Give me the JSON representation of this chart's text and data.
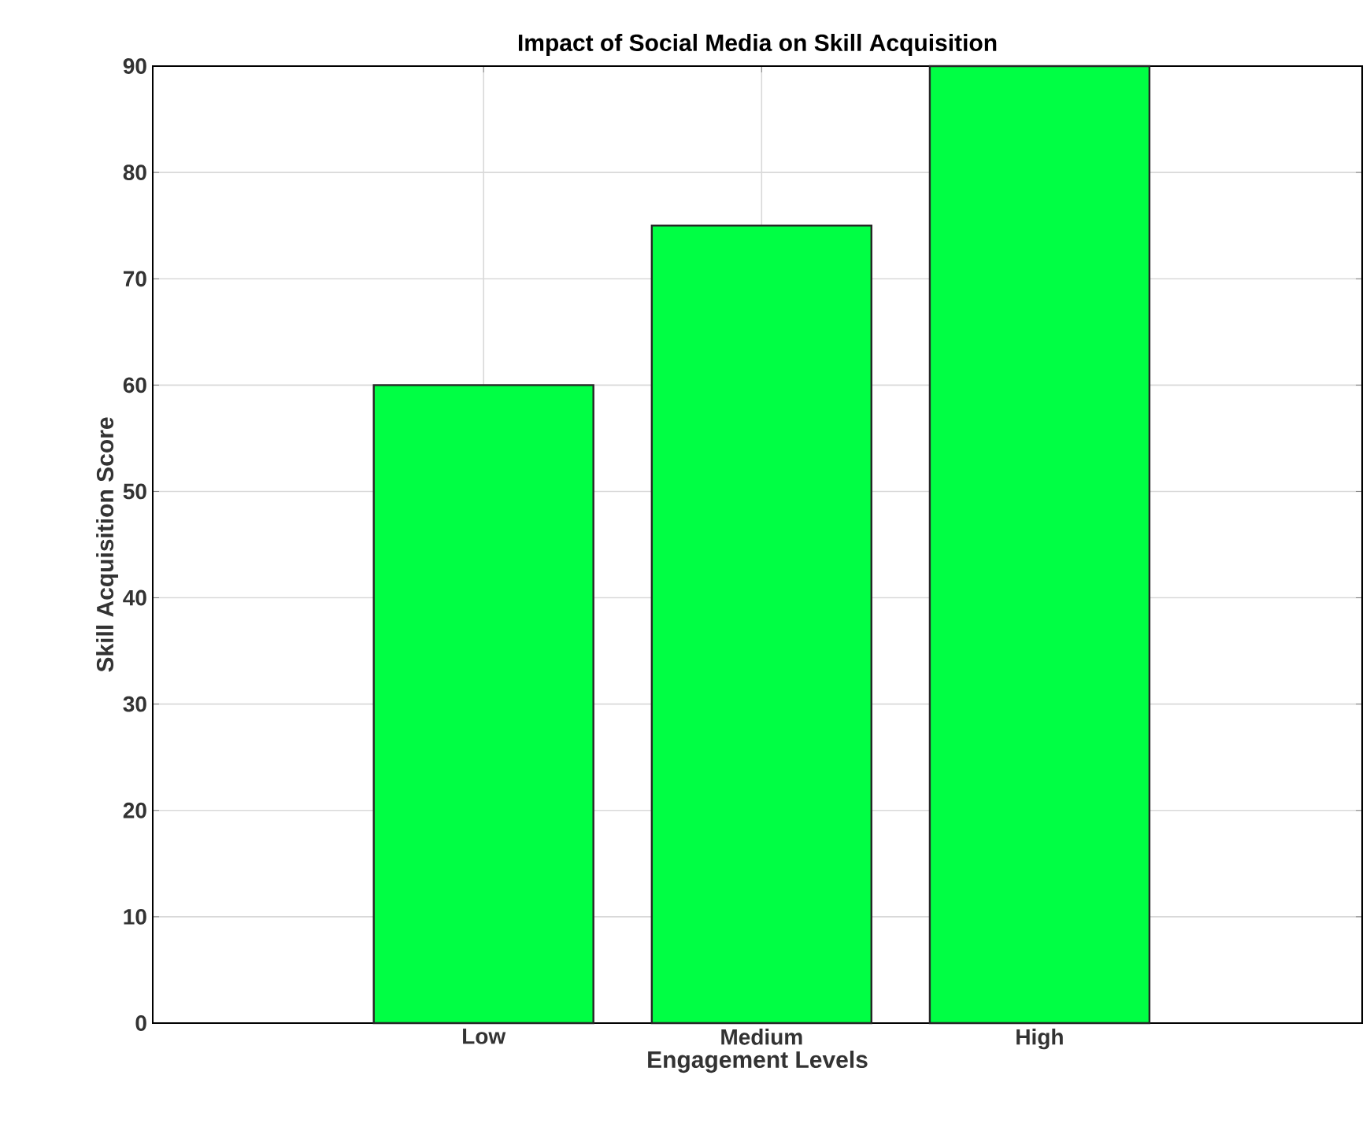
{
  "chart_data": {
    "type": "bar",
    "title": "Impact of Social Media on Skill Acquisition",
    "xlabel": "Engagement Levels",
    "ylabel": "Skill Acquisition Score",
    "categories": [
      "Low",
      "Medium",
      "High"
    ],
    "values": [
      60,
      75,
      90
    ],
    "color": "#00ff44",
    "ylim": [
      0,
      90
    ],
    "yticks": [
      0,
      10,
      20,
      30,
      40,
      50,
      60,
      70,
      80,
      90
    ],
    "grid": true
  }
}
